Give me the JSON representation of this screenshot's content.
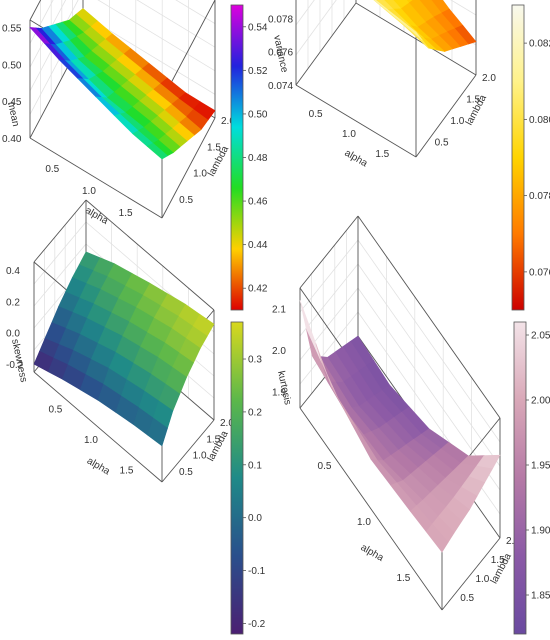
{
  "chart_data": [
    {
      "type": "surface3d",
      "zlabel": "mean",
      "xlabel": "alpha",
      "ylabel": "lambda",
      "x_ticks": [
        "0.5",
        "1.0",
        "1.5"
      ],
      "y_ticks": [
        "0.5",
        "1.0",
        "1.5",
        "2.0"
      ],
      "z_ticks": [
        "0.40",
        "0.45",
        "0.50",
        "0.55"
      ],
      "colorbar_ticks": [
        "0.42",
        "0.44",
        "0.46",
        "0.48",
        "0.50",
        "0.52",
        "0.54"
      ],
      "colorbar_range": [
        0.41,
        0.55
      ],
      "colorscale": "rainbow",
      "alpha": [
        0.1,
        0.5,
        1.0,
        1.5,
        1.9
      ],
      "lambda": [
        0.1,
        0.5,
        1.0,
        1.5,
        2.0
      ],
      "z": [
        [
          0.55,
          0.52,
          0.49,
          0.46,
          0.44
        ],
        [
          0.53,
          0.5,
          0.47,
          0.45,
          0.43
        ],
        [
          0.51,
          0.48,
          0.46,
          0.44,
          0.42
        ],
        [
          0.49,
          0.47,
          0.45,
          0.43,
          0.41
        ],
        [
          0.48,
          0.46,
          0.44,
          0.42,
          0.41
        ]
      ]
    },
    {
      "type": "surface3d",
      "zlabel": "variance",
      "xlabel": "alpha",
      "ylabel": "lambda",
      "x_ticks": [
        "0.5",
        "1.0",
        "1.5"
      ],
      "y_ticks": [
        "0.5",
        "1.0",
        "1.5",
        "2.0"
      ],
      "z_ticks": [
        "0.074",
        "0.076",
        "0.078",
        "0.080",
        "0.082"
      ],
      "colorbar_ticks": [
        "0.076",
        "0.078",
        "0.080",
        "0.082"
      ],
      "colorbar_range": [
        0.075,
        0.083
      ],
      "colorscale": "heat",
      "alpha": [
        0.1,
        0.5,
        1.0,
        1.5,
        1.9
      ],
      "lambda": [
        0.1,
        0.5,
        1.0,
        1.5,
        2.0
      ],
      "z": [
        [
          0.083,
          0.0828,
          0.0826,
          0.0824,
          0.0822
        ],
        [
          0.0826,
          0.0818,
          0.081,
          0.0805,
          0.08
        ],
        [
          0.0822,
          0.0805,
          0.0795,
          0.079,
          0.0785
        ],
        [
          0.0818,
          0.08,
          0.0785,
          0.0778,
          0.077
        ],
        [
          0.0815,
          0.0795,
          0.078,
          0.077,
          0.076
        ]
      ]
    },
    {
      "type": "surface3d",
      "zlabel": "skewness",
      "xlabel": "alpha",
      "ylabel": "lambda",
      "x_ticks": [
        "0.5",
        "1.0",
        "1.5"
      ],
      "y_ticks": [
        "0.5",
        "1.0",
        "1.5",
        "2.0"
      ],
      "z_ticks": [
        "-0.2",
        "0.0",
        "0.2",
        "0.4"
      ],
      "colorbar_ticks": [
        "-0.2",
        "-0.1",
        "0.0",
        "0.1",
        "0.2",
        "0.3"
      ],
      "colorbar_range": [
        -0.22,
        0.37
      ],
      "colorscale": "viridis",
      "alpha": [
        0.1,
        0.5,
        1.0,
        1.5,
        1.9
      ],
      "lambda": [
        0.1,
        0.5,
        1.0,
        1.5,
        2.0
      ],
      "z": [
        [
          -0.2,
          -0.12,
          -0.02,
          0.06,
          0.12
        ],
        [
          -0.14,
          -0.04,
          0.06,
          0.14,
          0.2
        ],
        [
          -0.08,
          0.04,
          0.14,
          0.22,
          0.27
        ],
        [
          -0.04,
          0.09,
          0.2,
          0.28,
          0.33
        ],
        [
          -0.02,
          0.12,
          0.23,
          0.31,
          0.36
        ]
      ]
    },
    {
      "type": "surface3d",
      "zlabel": "kurtosis",
      "xlabel": "alpha",
      "ylabel": "lambda",
      "x_ticks": [
        "0.5",
        "1.0",
        "1.5"
      ],
      "y_ticks": [
        "0.5",
        "1.0",
        "1.5",
        "2.0"
      ],
      "z_ticks": [
        "1.9",
        "2.0",
        "2.1"
      ],
      "colorbar_ticks": [
        "1.85",
        "1.90",
        "1.95",
        "2.00",
        "2.05"
      ],
      "colorbar_range": [
        1.82,
        2.06
      ],
      "colorscale": "purple-pink",
      "alpha": [
        0.1,
        0.5,
        1.0,
        1.5,
        1.9
      ],
      "lambda": [
        0.1,
        0.5,
        1.0,
        1.5,
        2.0
      ],
      "z": [
        [
          2.12,
          1.95,
          1.9,
          1.88,
          1.86
        ],
        [
          2.02,
          1.93,
          1.89,
          1.87,
          1.85
        ],
        [
          1.98,
          1.94,
          1.92,
          1.9,
          1.88
        ],
        [
          1.99,
          1.98,
          1.97,
          1.96,
          1.95
        ],
        [
          2.0,
          2.01,
          2.02,
          2.04,
          2.06
        ]
      ]
    }
  ]
}
